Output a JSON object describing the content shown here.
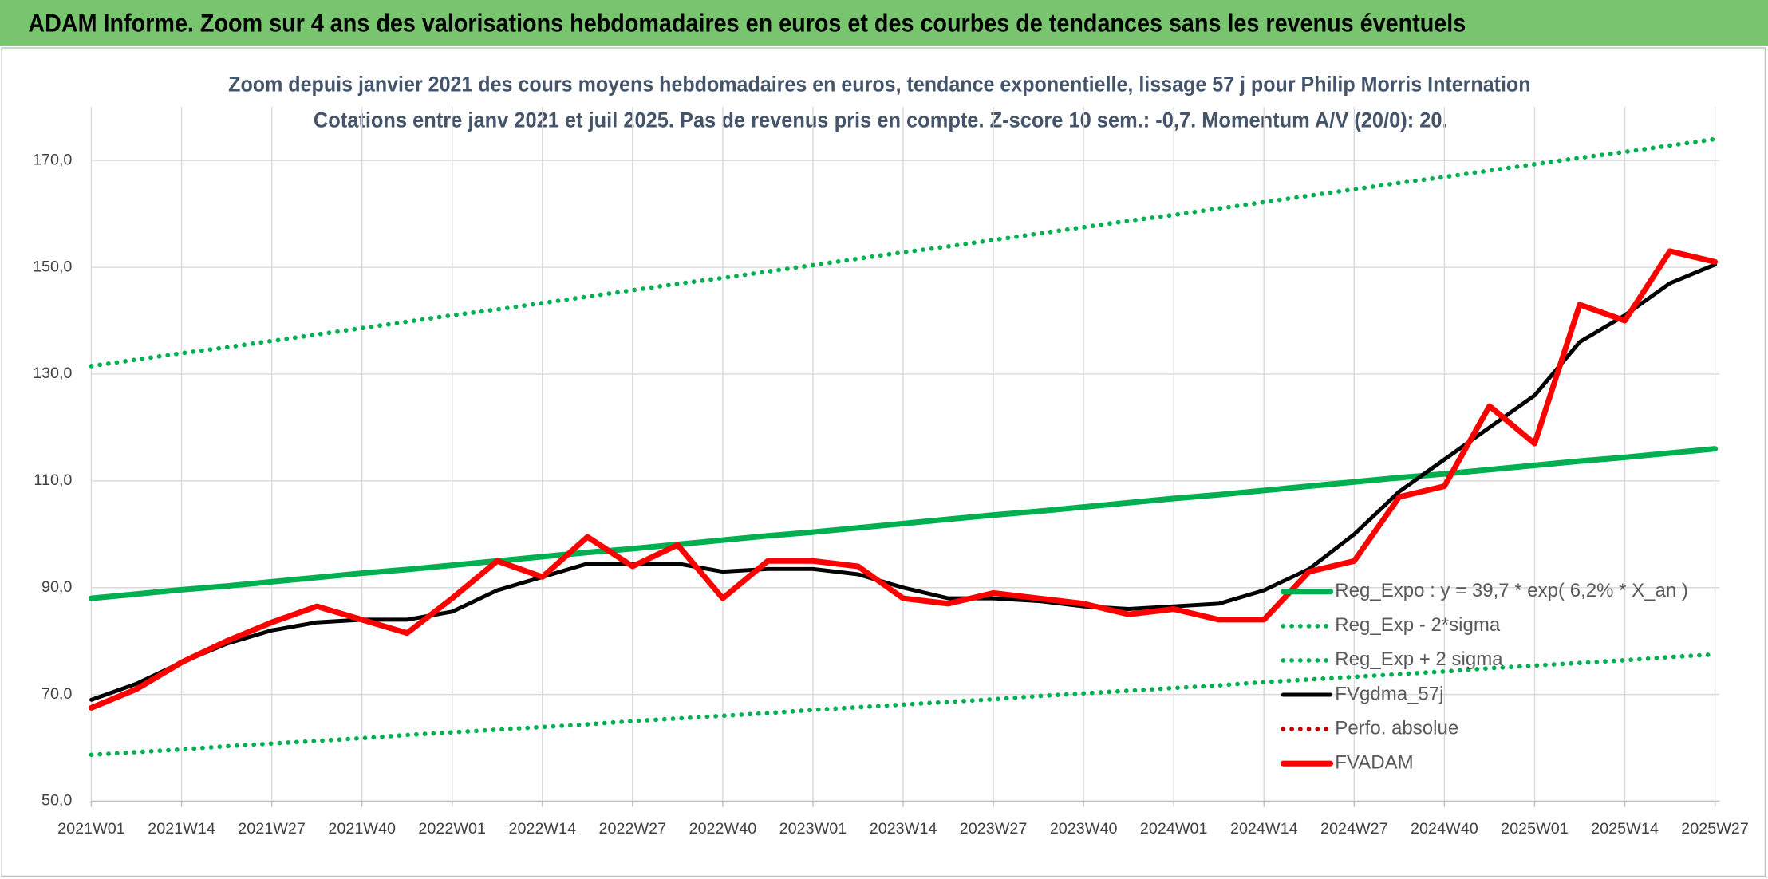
{
  "header": {
    "title": "ADAM Informe. Zoom sur 4 ans des valorisations hebdomadaires en euros et des courbes de tendances sans les revenus éventuels"
  },
  "chart_data": {
    "type": "line",
    "title": "Zoom depuis janvier 2021 des cours moyens hebdomadaires en euros, tendance exponentielle, lissage 57 j pour Philip Morris Internation",
    "subtitle": "Cotations entre janv 2021 et juil 2025. Pas de revenus pris en compte. Z-score 10 sem.: -0,7. Momentum A/V (20/0): 20.",
    "categories": [
      "2021W01",
      null,
      "2021W14",
      null,
      "2021W27",
      null,
      "2021W40",
      null,
      "2022W01",
      null,
      "2022W14",
      null,
      "2022W27",
      null,
      "2022W40",
      null,
      "2023W01",
      null,
      "2023W14",
      null,
      "2023W27",
      null,
      "2023W40",
      null,
      "2024W01",
      null,
      "2024W14",
      null,
      "2024W27",
      null,
      "2024W40",
      null,
      "2025W01",
      null,
      "2025W14",
      null,
      "2025W27"
    ],
    "ylim": [
      50,
      180
    ],
    "yticks": [
      {
        "value": 50,
        "label": "50,0"
      },
      {
        "value": 70,
        "label": "70,0"
      },
      {
        "value": 90,
        "label": "90,0"
      },
      {
        "value": 110,
        "label": "110,0"
      },
      {
        "value": 130,
        "label": "130,0"
      },
      {
        "value": 150,
        "label": "150,0"
      },
      {
        "value": 170,
        "label": "170,0"
      }
    ],
    "grid": true,
    "legend": "lower right",
    "series": [
      {
        "name": "Reg_Expo : y = 39,7 * exp( 6,2% *  X_an )",
        "color": "#00b050",
        "style": "solid",
        "values": [
          88,
          88.8,
          89.6,
          90.3,
          91.1,
          91.9,
          92.7,
          93.4,
          94.2,
          95.0,
          95.8,
          96.6,
          97.3,
          98.1,
          98.9,
          99.7,
          100.4,
          101.2,
          102.0,
          102.8,
          103.6,
          104.3,
          105.1,
          105.9,
          106.7,
          107.4,
          108.2,
          109.0,
          109.8,
          110.6,
          111.3,
          112.1,
          112.9,
          113.7,
          114.4,
          115.2,
          116.0
        ]
      },
      {
        "name": "Reg_Exp - 2*sigma",
        "color": "#00b050",
        "style": "dotted",
        "values": [
          58.7,
          59.2,
          59.7,
          60.3,
          60.8,
          61.3,
          61.8,
          62.4,
          62.9,
          63.4,
          63.9,
          64.4,
          65.0,
          65.5,
          66.0,
          66.5,
          67.1,
          67.6,
          68.1,
          68.6,
          69.1,
          69.7,
          70.2,
          70.7,
          71.2,
          71.7,
          72.3,
          72.8,
          73.3,
          73.8,
          74.3,
          74.9,
          75.4,
          75.9,
          76.4,
          77.0,
          77.5
        ]
      },
      {
        "name": "Reg_Exp + 2 sigma",
        "color": "#00b050",
        "style": "dotted",
        "values": [
          131.5,
          132.7,
          133.9,
          135.0,
          136.2,
          137.4,
          138.6,
          139.8,
          141.0,
          142.1,
          143.3,
          144.5,
          145.7,
          146.9,
          148.0,
          149.2,
          150.4,
          151.6,
          152.8,
          153.9,
          155.1,
          156.3,
          157.5,
          158.7,
          159.8,
          161.0,
          162.2,
          163.4,
          164.6,
          165.8,
          166.9,
          168.1,
          169.3,
          170.5,
          171.6,
          172.8,
          174.0
        ]
      },
      {
        "name": "FVgdma_57j",
        "color": "#000000",
        "style": "solid",
        "values": [
          69,
          72,
          76,
          79.5,
          82,
          83.5,
          84,
          84,
          85.5,
          89.5,
          92,
          94.5,
          94.5,
          94.5,
          93,
          93.5,
          93.5,
          92.5,
          90,
          88,
          88,
          87.5,
          86.5,
          86,
          86.5,
          87,
          89.5,
          93.5,
          100,
          108,
          114,
          120,
          126,
          136,
          141,
          147,
          150.5
        ]
      },
      {
        "name": "Perfo. absolue",
        "color": "#c00000",
        "style": "dotted",
        "values": [
          null,
          null,
          null,
          null,
          null,
          null,
          null,
          null,
          null,
          null,
          null,
          null,
          null,
          null,
          null,
          null,
          null,
          null,
          null,
          null,
          null,
          null,
          null,
          null,
          null,
          null,
          null,
          null,
          null,
          null,
          null,
          null,
          null,
          null,
          null,
          null,
          null
        ]
      },
      {
        "name": "FVADAM",
        "color": "#ff0000",
        "style": "solid",
        "values": [
          67.5,
          71,
          76,
          80,
          83.5,
          86.5,
          84,
          81.5,
          88,
          95,
          92,
          99.5,
          94,
          98,
          88,
          95,
          95,
          94,
          88,
          87,
          89,
          88,
          87,
          85,
          86,
          84,
          84,
          93,
          95,
          107,
          109,
          124,
          117,
          143,
          140,
          153,
          151
        ]
      }
    ]
  }
}
